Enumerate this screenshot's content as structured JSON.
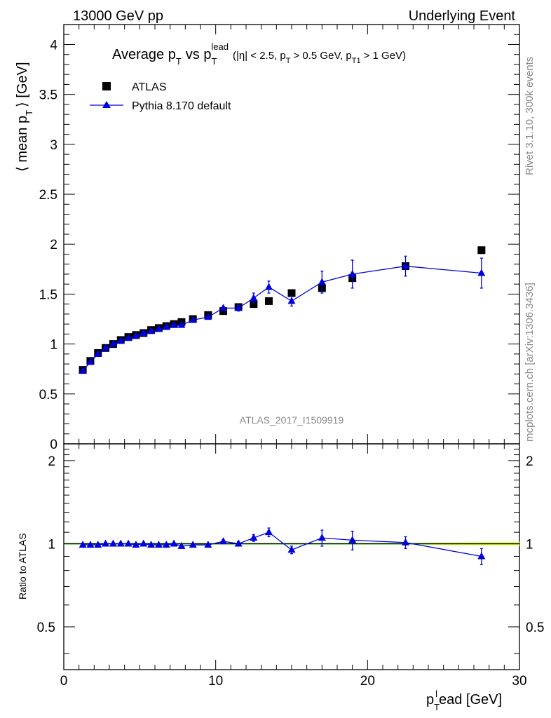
{
  "header": {
    "left": "13000 GeV pp",
    "right": "Underlying Event"
  },
  "title": {
    "main": "Average p",
    "main_sub": "T",
    "vs": "vs p",
    "vs_sub": "T",
    "vs_sup": "lead",
    "cuts_1": "(|η| < 2.5, p",
    "cuts_sub1": "T",
    "cuts_2": "> 0.5 GeV, p",
    "cuts_sub2": "T1",
    "cuts_3": "> 1 GeV)"
  },
  "side_labels": {
    "rivet": "Rivet 3.1.10,  300k events",
    "mcplots": "mcplots.cern.ch [arXiv:1306.3436]",
    "analysis": "ATLAS_2017_I1509919"
  },
  "axes": {
    "y_main_label": "⟨ mean p",
    "y_main_sub": "T",
    "y_main_label_end": "⟩ [GeV]",
    "y_ratio_label": "Ratio to ATLAS",
    "x_label": "p",
    "x_label_sub": "T",
    "x_label_sup": "l",
    "x_label_end": "ead [GeV]",
    "x_ticks": [
      "0",
      "10",
      "20",
      "30"
    ],
    "y_main_ticks": [
      "0",
      "0.5",
      "1",
      "1.5",
      "2",
      "2.5",
      "3",
      "3.5",
      "4"
    ],
    "y_ratio_ticks": [
      "0.5",
      "1",
      "2"
    ]
  },
  "legend": {
    "data_label": "ATLAS",
    "mc_label": "Pythia 8.170 default"
  },
  "colors": {
    "data": "#000000",
    "mc": "#0000dd",
    "band_outer": "#ffff99",
    "band_inner": "#bbee66",
    "ratio_line": "#339900"
  },
  "chart_data": {
    "type": "scatter",
    "x_range": [
      0,
      30
    ],
    "y_range_main": [
      0,
      4.2
    ],
    "y_range_ratio": [
      0.35,
      2.3
    ],
    "ratio_scale": "log",
    "series": [
      {
        "name": "ATLAS",
        "x": [
          1.25,
          1.75,
          2.25,
          2.75,
          3.25,
          3.75,
          4.25,
          4.75,
          5.25,
          5.75,
          6.25,
          6.75,
          7.25,
          7.75,
          8.5,
          9.5,
          10.5,
          11.5,
          12.5,
          13.5,
          15.0,
          17.0,
          19.0,
          22.5,
          27.5
        ],
        "y": [
          0.74,
          0.83,
          0.91,
          0.96,
          1.0,
          1.04,
          1.07,
          1.09,
          1.11,
          1.14,
          1.16,
          1.18,
          1.2,
          1.22,
          1.25,
          1.29,
          1.33,
          1.37,
          1.4,
          1.43,
          1.51,
          1.56,
          1.66,
          1.78,
          1.94
        ]
      },
      {
        "name": "Pythia 8.170 default",
        "x": [
          1.25,
          1.75,
          2.25,
          2.75,
          3.25,
          3.75,
          4.25,
          4.75,
          5.25,
          5.75,
          6.25,
          6.75,
          7.25,
          7.75,
          8.5,
          9.5,
          10.5,
          11.5,
          12.5,
          13.5,
          15.0,
          17.0,
          19.0,
          22.5,
          27.5
        ],
        "y": [
          0.73,
          0.82,
          0.9,
          0.96,
          1.0,
          1.03,
          1.06,
          1.08,
          1.11,
          1.13,
          1.15,
          1.17,
          1.19,
          1.19,
          1.24,
          1.27,
          1.36,
          1.36,
          1.46,
          1.57,
          1.43,
          1.62,
          1.7,
          1.78,
          1.71
        ],
        "y_err": [
          0.005,
          0.005,
          0.005,
          0.005,
          0.005,
          0.005,
          0.005,
          0.005,
          0.005,
          0.005,
          0.005,
          0.005,
          0.005,
          0.005,
          0.01,
          0.01,
          0.02,
          0.03,
          0.05,
          0.06,
          0.05,
          0.11,
          0.14,
          0.1,
          0.15
        ],
        "ratio": [
          0.99,
          0.99,
          0.99,
          1.0,
          1.0,
          1.0,
          1.0,
          0.99,
          1.0,
          0.99,
          0.99,
          0.99,
          1.0,
          0.98,
          0.99,
          0.99,
          1.02,
          1.0,
          1.05,
          1.1,
          0.95,
          1.05,
          1.03,
          1.01,
          0.9
        ],
        "ratio_err": [
          0.005,
          0.005,
          0.005,
          0.005,
          0.005,
          0.005,
          0.005,
          0.005,
          0.005,
          0.005,
          0.005,
          0.005,
          0.005,
          0.005,
          0.01,
          0.01,
          0.015,
          0.02,
          0.03,
          0.04,
          0.03,
          0.07,
          0.08,
          0.05,
          0.06
        ]
      }
    ]
  }
}
